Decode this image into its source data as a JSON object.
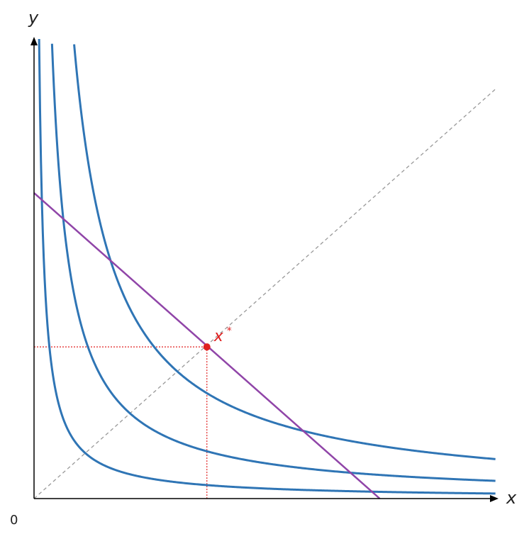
{
  "chart_data": {
    "type": "line",
    "title": "",
    "xlabel": "x",
    "ylabel": "y",
    "origin_label": "0",
    "xlim": [
      0,
      10
    ],
    "ylim": [
      0,
      10
    ],
    "grid": false,
    "legend": "none",
    "indifference_curves": [
      {
        "k": 1.1
      },
      {
        "k": 3.86
      },
      {
        "k": 8.6
      }
    ],
    "budget_line": {
      "x_intercept": 7.5,
      "y_intercept": 6.65
    },
    "diagonal": {
      "from": [
        0,
        0
      ],
      "to": [
        10,
        8.9
      ]
    },
    "optimum": {
      "x": 3.75,
      "y": 3.3,
      "label": "x",
      "label_sup": "*"
    },
    "colors": {
      "curve": "#2f75b5",
      "budget": "#9045a8",
      "diagonal": "#999999",
      "optimum": "#e02020",
      "axis": "#000000",
      "text": "#222222"
    }
  }
}
